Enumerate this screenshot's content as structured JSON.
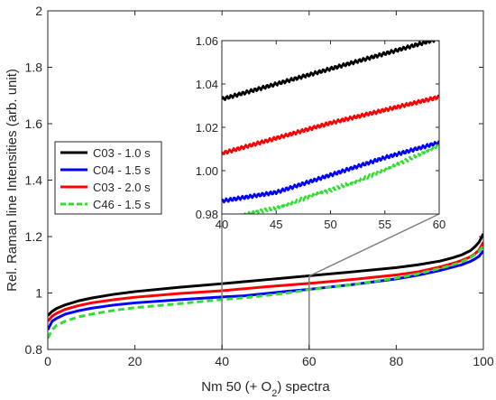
{
  "chart_data": {
    "type": "line",
    "xlabel": "Nm 50 (+ O",
    "xlabel_sub": "2",
    "xlabel_tail": ") spectra",
    "ylabel": "Rel. Raman line Intensities (arb. unit)",
    "xlim": [
      0,
      100
    ],
    "ylim": [
      0.8,
      2.0
    ],
    "xticks": [
      "0",
      "20",
      "40",
      "60",
      "80",
      "100"
    ],
    "yticks": [
      "0.8",
      "1",
      "1.2",
      "1.4",
      "1.6",
      "1.8",
      "2"
    ],
    "grid": false,
    "legend_position": "left-middle",
    "x": [
      0,
      1,
      2,
      4,
      7,
      10,
      15,
      20,
      30,
      40,
      45,
      50,
      55,
      60,
      70,
      80,
      85,
      90,
      93,
      95,
      97,
      98,
      99,
      100
    ],
    "series": [
      {
        "name": "C03 - 1.0 s",
        "color": "#000000",
        "dash": "solid",
        "values": [
          0.92,
          0.935,
          0.945,
          0.958,
          0.972,
          0.982,
          0.995,
          1.005,
          1.02,
          1.033,
          1.04,
          1.047,
          1.054,
          1.061,
          1.075,
          1.09,
          1.1,
          1.113,
          1.125,
          1.135,
          1.15,
          1.163,
          1.18,
          1.21
        ]
      },
      {
        "name": "C04 - 1.5 s",
        "color": "#0000ff",
        "dash": "solid",
        "values": [
          0.87,
          0.9,
          0.91,
          0.925,
          0.937,
          0.946,
          0.957,
          0.965,
          0.976,
          0.986,
          0.99,
          0.998,
          1.006,
          1.013,
          1.03,
          1.05,
          1.063,
          1.08,
          1.092,
          1.1,
          1.112,
          1.12,
          1.13,
          1.15
        ]
      },
      {
        "name": "C03 - 2.0 s",
        "color": "#ff0000",
        "dash": "solid",
        "values": [
          0.9,
          0.918,
          0.928,
          0.942,
          0.955,
          0.965,
          0.976,
          0.985,
          0.998,
          1.008,
          1.015,
          1.022,
          1.028,
          1.034,
          1.048,
          1.064,
          1.075,
          1.092,
          1.105,
          1.115,
          1.128,
          1.138,
          1.152,
          1.18
        ]
      },
      {
        "name": "C46 - 1.5 s",
        "color": "#33dd33",
        "dash": "dashed",
        "values": [
          0.84,
          0.87,
          0.885,
          0.9,
          0.915,
          0.925,
          0.938,
          0.948,
          0.962,
          0.977,
          0.983,
          0.991,
          1.0,
          1.012,
          1.03,
          1.053,
          1.068,
          1.087,
          1.1,
          1.11,
          1.125,
          1.135,
          1.148,
          1.168
        ]
      }
    ],
    "inset": {
      "xlim": [
        40,
        60
      ],
      "ylim": [
        0.98,
        1.06
      ],
      "xticks": [
        "40",
        "45",
        "50",
        "55",
        "60"
      ],
      "yticks": [
        "0.98",
        "1.00",
        "1.02",
        "1.04",
        "1.06"
      ]
    }
  }
}
